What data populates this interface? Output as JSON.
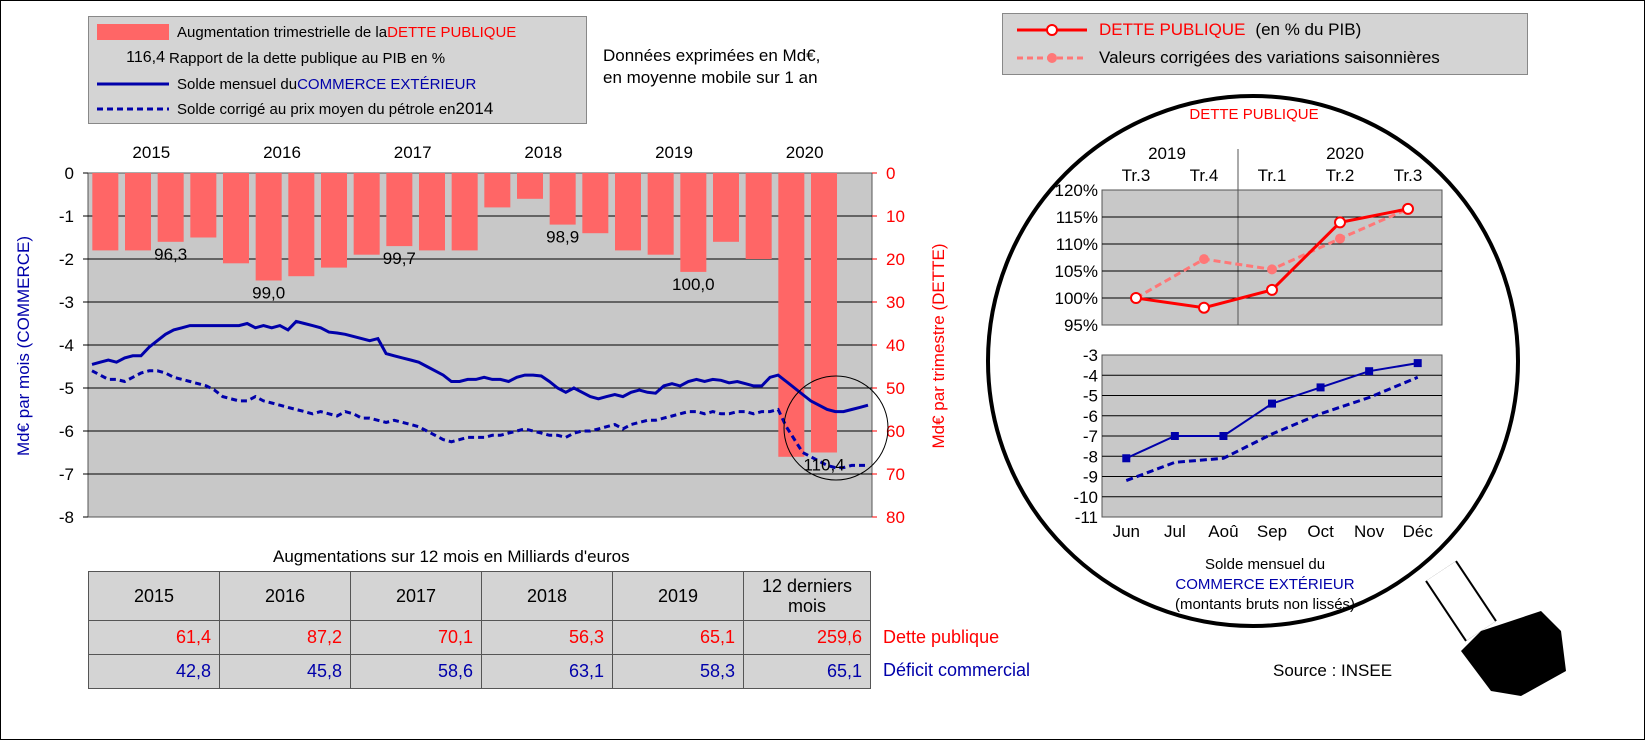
{
  "legend_main": {
    "debt_bar": {
      "prefix": "Augmentation trimestrielle de la ",
      "highlight": "DETTE PUBLIQUE"
    },
    "ratio": {
      "value": "116,4",
      "label": "Rapport de la dette publique au PIB en %"
    },
    "trade_line": {
      "prefix": "Solde mensuel du ",
      "highlight": "COMMERCE EXTÉRIEUR"
    },
    "trade_corrected": {
      "label": "Solde corrigé au prix moyen du pétrole en ",
      "year": "2014"
    }
  },
  "note": {
    "line1": "Données exprimées en Md€,",
    "line2": "en moyenne mobile sur 1 an"
  },
  "legend_right": {
    "series1": {
      "main": "DETTE PUBLIQUE",
      "suffix": "(en % du PIB)"
    },
    "series2": "Valeurs corrigées des variations saisonnières"
  },
  "chart_data": [
    {
      "type": "bar+line",
      "years": [
        "2015",
        "2016",
        "2017",
        "2018",
        "2019",
        "2020"
      ],
      "ylabel_left": "Md€ par mois (COMMERCE)",
      "ylabel_right": "Md€ par trimestre (DETTE)",
      "yticks_left": [
        "0",
        "-1",
        "-2",
        "-3",
        "-4",
        "-5",
        "-6",
        "-7",
        "-8"
      ],
      "yticks_right": [
        "0",
        "10",
        "20",
        "30",
        "40",
        "50",
        "60",
        "70",
        "80"
      ],
      "ylim_left": [
        -8,
        0
      ],
      "ylim_right": [
        80,
        0
      ],
      "debt_bars": [
        18,
        18,
        16,
        15,
        21,
        25,
        24,
        22,
        19,
        17,
        18,
        18,
        8,
        6,
        12,
        14,
        18,
        19,
        23,
        16,
        20,
        66,
        65
      ],
      "ratio_labels": [
        {
          "label": "96,3",
          "bar": 2
        },
        {
          "label": "99,0",
          "bar": 5
        },
        {
          "label": "99,7",
          "bar": 9
        },
        {
          "label": "98,9",
          "bar": 14
        },
        {
          "label": "100,0",
          "bar": 18
        },
        {
          "label": "110,4",
          "bar": 22
        }
      ],
      "trade_series": [
        {
          "name": "Solde mensuel du COMMERCE EXTÉRIEUR",
          "style": "solid",
          "values": [
            -4.45,
            -4.4,
            -4.35,
            -4.4,
            -4.3,
            -4.25,
            -4.25,
            -4.05,
            -3.9,
            -3.75,
            -3.65,
            -3.6,
            -3.55,
            -3.55,
            -3.55,
            -3.55,
            -3.55,
            -3.55,
            -3.55,
            -3.5,
            -3.6,
            -3.55,
            -3.6,
            -3.55,
            -3.65,
            -3.45,
            -3.5,
            -3.55,
            -3.6,
            -3.7,
            -3.72,
            -3.75,
            -3.8,
            -3.85,
            -3.9,
            -3.85,
            -4.2,
            -4.25,
            -4.3,
            -4.35,
            -4.4,
            -4.5,
            -4.6,
            -4.7,
            -4.85,
            -4.85,
            -4.8,
            -4.8,
            -4.75,
            -4.8,
            -4.8,
            -4.85,
            -4.75,
            -4.7,
            -4.7,
            -4.72,
            -4.85,
            -5.0,
            -5.1,
            -5.0,
            -5.1,
            -5.2,
            -5.25,
            -5.2,
            -5.15,
            -5.2,
            -5.1,
            -5.05,
            -5.1,
            -5.12,
            -4.95,
            -4.9,
            -4.95,
            -4.85,
            -4.8,
            -4.85,
            -4.8,
            -4.82,
            -4.88,
            -4.85,
            -4.9,
            -4.95,
            -4.95,
            -4.75,
            -4.7,
            -4.85,
            -5.0,
            -5.15,
            -5.3,
            -5.4,
            -5.5,
            -5.55,
            -5.55,
            -5.5,
            -5.45,
            -5.4
          ]
        },
        {
          "name": "Solde corrigé au prix moyen du pétrole en 2014",
          "style": "dashed",
          "values": [
            -4.6,
            -4.7,
            -4.8,
            -4.8,
            -4.85,
            -4.75,
            -4.65,
            -4.6,
            -4.6,
            -4.65,
            -4.75,
            -4.8,
            -4.85,
            -4.9,
            -4.95,
            -5.05,
            -5.2,
            -5.25,
            -5.3,
            -5.3,
            -5.2,
            -5.3,
            -5.35,
            -5.4,
            -5.45,
            -5.5,
            -5.55,
            -5.6,
            -5.55,
            -5.6,
            -5.65,
            -5.55,
            -5.6,
            -5.7,
            -5.7,
            -5.75,
            -5.8,
            -5.75,
            -5.8,
            -5.85,
            -5.9,
            -6.0,
            -6.1,
            -6.2,
            -6.25,
            -6.2,
            -6.15,
            -6.15,
            -6.15,
            -6.1,
            -6.1,
            -6.05,
            -6.0,
            -5.95,
            -6.0,
            -6.05,
            -6.1,
            -6.1,
            -6.15,
            -6.05,
            -6.0,
            -6.0,
            -5.95,
            -5.9,
            -5.85,
            -5.95,
            -5.85,
            -5.8,
            -5.75,
            -5.75,
            -5.7,
            -5.65,
            -5.6,
            -5.55,
            -5.55,
            -5.6,
            -5.55,
            -5.6,
            -5.6,
            -5.55,
            -5.55,
            -5.6,
            -5.55,
            -5.55,
            -5.5,
            -5.9,
            -6.2,
            -6.5,
            -6.6,
            -6.7,
            -6.8,
            -6.85,
            -6.85,
            -6.8,
            -6.8,
            -6.8
          ]
        }
      ]
    },
    {
      "type": "line",
      "title": "DETTE PUBLIQUE",
      "years": [
        "2019",
        "2020"
      ],
      "quarters": [
        "Tr.3",
        "Tr.4",
        "Tr.1",
        "Tr.2",
        "Tr.3"
      ],
      "yticks": [
        "120%",
        "115%",
        "110%",
        "105%",
        "100%",
        "95%"
      ],
      "ylim": [
        95,
        120
      ],
      "series": [
        {
          "name": "DETTE PUBLIQUE (en % du PIB)",
          "values": [
            100.0,
            98.2,
            101.5,
            114.0,
            116.5
          ]
        },
        {
          "name": "Valeurs corrigées des variations saisonnières",
          "values": [
            100.0,
            107.2,
            105.3,
            111.0,
            116.5
          ]
        }
      ]
    },
    {
      "type": "line",
      "categories": [
        "Jun",
        "Jul",
        "Aoû",
        "Sep",
        "Oct",
        "Nov",
        "Déc"
      ],
      "yticks": [
        "-3",
        "-4",
        "-5",
        "-6",
        "-7",
        "-8",
        "-9",
        "-10",
        "-11"
      ],
      "ylim": [
        -11,
        -3
      ],
      "series": [
        {
          "name": "Solde mensuel du COMMERCE EXTÉRIEUR",
          "values": [
            -8.1,
            -7.0,
            -7.0,
            -5.4,
            -4.6,
            -3.8,
            -3.4
          ]
        },
        {
          "name": "Solde corrigé",
          "values": [
            -9.2,
            -8.3,
            -8.1,
            -6.9,
            -5.9,
            -5.1,
            -4.1
          ]
        }
      ],
      "caption": {
        "line1": "Solde mensuel du",
        "line2": "COMMERCE EXTÉRIEUR",
        "line3": "(montants bruts non lissés)"
      }
    }
  ],
  "table": {
    "title": "Augmentations sur 12 mois en Milliards d'euros",
    "headers": [
      "2015",
      "2016",
      "2017",
      "2018",
      "2019",
      "12 derniers mois"
    ],
    "debt_row": {
      "label": "Dette publique",
      "values": [
        "61,4",
        "87,2",
        "70,1",
        "56,3",
        "65,1",
        "259,6"
      ]
    },
    "trade_row": {
      "label": "Déficit commercial",
      "values": [
        "42,8",
        "45,8",
        "58,6",
        "63,1",
        "58,3",
        "65,1"
      ]
    }
  },
  "source": "Source : INSEE",
  "colors": {
    "debt": "#ff6666",
    "red": "#ff0000",
    "blue": "#0000aa",
    "plot_bg": "#c8c8c8",
    "dashed_pink": "#ff7777"
  }
}
